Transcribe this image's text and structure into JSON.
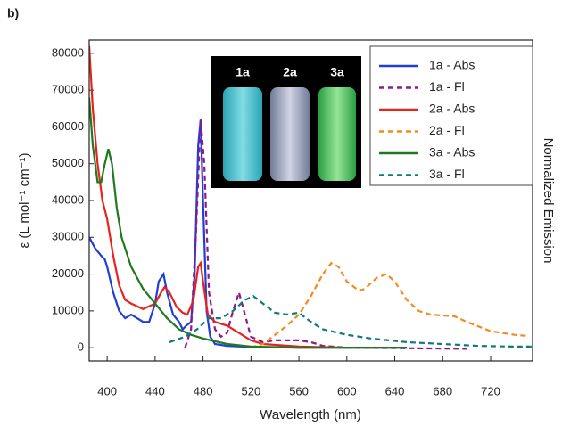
{
  "chart_data": {
    "type": "line",
    "title": "b)",
    "x_label": "Wavelength (nm)",
    "y_label": "ε (L mol⁻¹ cm⁻¹)",
    "y2_label": "Normalized Emission",
    "xlim": [
      385,
      755
    ],
    "ylim": [
      -3600,
      83600
    ],
    "xticks": [
      400,
      440,
      480,
      520,
      560,
      600,
      640,
      680,
      720
    ],
    "yticks": [
      0,
      10000,
      20000,
      30000,
      40000,
      50000,
      60000,
      70000,
      80000
    ],
    "grid": false,
    "legend": "upper right",
    "inset_labels": [
      "1a",
      "2a",
      "3a"
    ],
    "series": [
      {
        "name": "1a - Abs",
        "color": "#1f3fd6",
        "linestyle": "solid",
        "x": [
          385,
          390,
          395,
          398,
          400,
          405,
          410,
          415,
          420,
          425,
          430,
          435,
          440,
          443,
          447,
          450,
          455,
          460,
          463,
          466,
          470,
          473,
          476,
          478,
          480,
          483,
          486,
          490,
          500,
          520,
          560,
          650
        ],
        "values": [
          30000,
          27000,
          25000,
          24000,
          22000,
          15000,
          10000,
          8000,
          9000,
          8000,
          7000,
          7000,
          12000,
          18000,
          20000,
          15000,
          9000,
          7000,
          5000,
          6000,
          7000,
          20000,
          55000,
          62000,
          40000,
          10000,
          3000,
          1000,
          500,
          200,
          0,
          0
        ]
      },
      {
        "name": "1a - Fl",
        "color": "#8b1a8b",
        "linestyle": "dashed",
        "x": [
          465,
          470,
          474,
          478,
          481,
          485,
          490,
          495,
          500,
          505,
          510,
          515,
          520,
          530,
          540,
          560,
          570,
          580,
          600,
          700
        ],
        "values": [
          0,
          5000,
          30000,
          62000,
          50000,
          15000,
          5000,
          3000,
          4000,
          10000,
          15000,
          9000,
          3000,
          1500,
          2000,
          2000,
          1500,
          500,
          0,
          -300
        ]
      },
      {
        "name": "2a - Abs",
        "color": "#e8231c",
        "linestyle": "solid",
        "x": [
          385,
          388,
          392,
          396,
          400,
          405,
          410,
          415,
          420,
          430,
          440,
          445,
          448,
          452,
          458,
          463,
          467,
          472,
          476,
          478,
          480,
          484,
          490,
          500,
          510,
          520,
          530,
          560,
          600
        ],
        "values": [
          82000,
          65000,
          50000,
          40000,
          35000,
          25000,
          17000,
          13000,
          12000,
          10500,
          12000,
          15000,
          16500,
          15000,
          11000,
          9500,
          9000,
          13000,
          22000,
          23000,
          18000,
          9000,
          7000,
          6000,
          4000,
          2000,
          1000,
          300,
          0
        ]
      },
      {
        "name": "2a - Fl",
        "color": "#f28c1e",
        "linestyle": "dashed",
        "x": [
          520,
          530,
          540,
          550,
          560,
          570,
          580,
          587,
          593,
          600,
          610,
          615,
          625,
          633,
          640,
          650,
          660,
          670,
          690,
          700,
          720,
          740,
          750
        ],
        "values": [
          0,
          1000,
          3500,
          6000,
          9000,
          14000,
          20000,
          23000,
          22000,
          18000,
          15500,
          16000,
          19000,
          20000,
          18000,
          13000,
          10000,
          9000,
          8500,
          7000,
          4500,
          3500,
          3200
        ]
      },
      {
        "name": "3a - Abs",
        "color": "#1e7a1e",
        "linestyle": "solid",
        "x": [
          385,
          388,
          392,
          395,
          398,
          401,
          404,
          408,
          412,
          420,
          430,
          440,
          450,
          460,
          470,
          480,
          500,
          520,
          560,
          650
        ],
        "values": [
          68000,
          55000,
          45000,
          45000,
          50000,
          54000,
          50000,
          38000,
          30000,
          22000,
          16000,
          12000,
          8000,
          5000,
          3500,
          2500,
          1000,
          300,
          0,
          0
        ]
      },
      {
        "name": "3a - Fl",
        "color": "#0e7a7a",
        "linestyle": "dashed",
        "x": [
          452,
          465,
          475,
          485,
          495,
          505,
          515,
          522,
          530,
          540,
          550,
          560,
          570,
          580,
          600,
          620,
          650,
          680,
          710,
          740,
          755
        ],
        "values": [
          1500,
          3000,
          5000,
          8000,
          8000,
          10000,
          13000,
          14000,
          12000,
          9500,
          9000,
          9500,
          7000,
          5000,
          3500,
          2500,
          1500,
          1000,
          500,
          300,
          300
        ]
      }
    ]
  }
}
